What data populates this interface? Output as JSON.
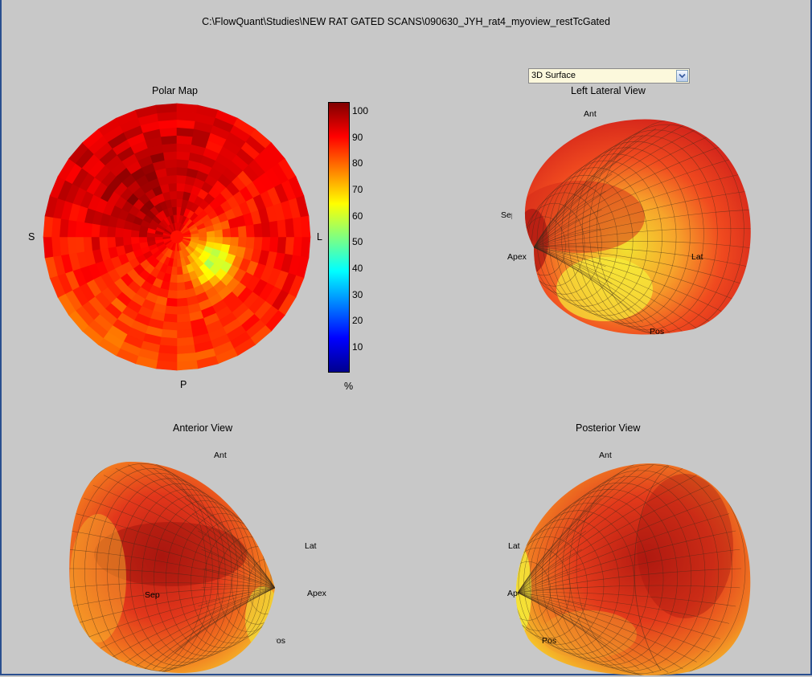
{
  "window": {
    "path_title": "C:\\FlowQuant\\Studies\\NEW RAT GATED SCANS\\090630_JYH_rat4_myoview_restTcGated"
  },
  "polar_map": {
    "title": "Polar Map",
    "labels": {
      "septal": "S",
      "lateral": "L",
      "posterior": "P"
    }
  },
  "colorbar": {
    "ticks": [
      "100",
      "90",
      "80",
      "70",
      "60",
      "50",
      "40",
      "30",
      "20",
      "10"
    ],
    "unit": "%",
    "colormap": "jet",
    "range": [
      0,
      100
    ]
  },
  "view_selector": {
    "selected": "3D Surface"
  },
  "left_lateral_view": {
    "title": "Left Lateral View",
    "labels": {
      "ant": "Ant",
      "sep": "Sep",
      "apex": "Apex",
      "lat": "Lat",
      "pos": "Pos"
    }
  },
  "anterior_view": {
    "title": "Anterior View",
    "labels": {
      "ant": "Ant",
      "lat": "Lat",
      "sep": "Sep",
      "apex": "Apex",
      "pos": "Pos"
    }
  },
  "posterior_view": {
    "title": "Posterior View",
    "labels": {
      "ant": "Ant",
      "lat": "Lat",
      "apex": "Apex",
      "pos": "Pos"
    }
  }
}
